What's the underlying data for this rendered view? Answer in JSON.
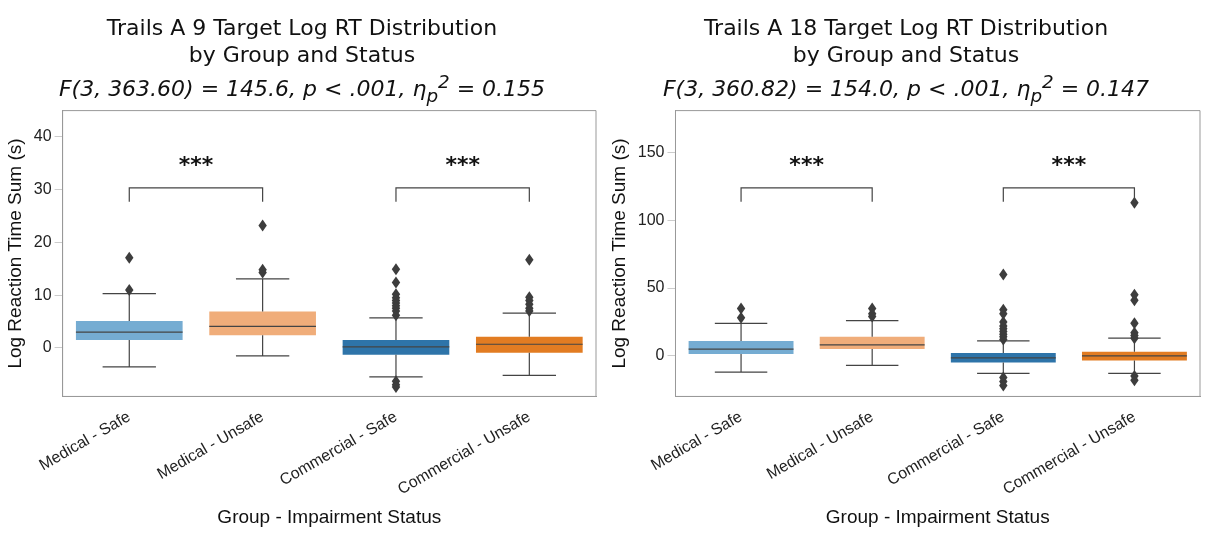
{
  "chart_data": [
    {
      "type": "box",
      "title": "Trails A 9 Target Log RT Distribution\nby Group and Status",
      "subtitle": "F(3, 363.60) = 145.6, p < .001, η$_{p}$$^{2}$ = 0.155",
      "xlabel": "Group - Impairment Status",
      "ylabel": "Log Reaction Time Sum (s)",
      "categories": [
        "Medical - Safe",
        "Medical - Unsafe",
        "Commercial - Safe",
        "Commercial - Unsafe"
      ],
      "colors": [
        "#75acd2",
        "#f0ad7a",
        "#2e74a9",
        "#e27c22"
      ],
      "boxes": [
        {
          "low": -3.6,
          "q1": 1.5,
          "median": 3.0,
          "q3": 5.1,
          "high": 10.3,
          "outliers": [
            11,
            17.1
          ]
        },
        {
          "low": -1.5,
          "q1": 2.4,
          "median": 4.1,
          "q3": 6.9,
          "high": 13.1,
          "outliers": [
            14.3,
            14.8,
            23.2
          ]
        },
        {
          "low": -5.5,
          "q1": -1.3,
          "median": 0.2,
          "q3": 1.5,
          "high": 5.7,
          "outliers": [
            6.2,
            7,
            7.5,
            8,
            8.5,
            9,
            9.5,
            10.2,
            12.4,
            14.9,
            -6.3,
            -7,
            -7.4
          ]
        },
        {
          "low": -5.2,
          "q1": -0.9,
          "median": 0.7,
          "q3": 2.1,
          "high": 6.6,
          "outliers": [
            7,
            7.5,
            8.3,
            9,
            9.6,
            16.7
          ]
        }
      ],
      "ylim": [
        -9.2,
        45
      ],
      "yticks": [
        0,
        10,
        20,
        30,
        40
      ],
      "grid": false,
      "legend": false,
      "marker": "diamond",
      "annotations": [
        "***",
        "***"
      ]
    },
    {
      "type": "box",
      "title": "Trails A 18 Target Log RT Distribution\nby Group and Status",
      "subtitle": "F(3, 360.82) = 154.0, p < .001, η$_{p}$$^{2}$ = 0.147",
      "xlabel": "Group - Impairment Status",
      "ylabel": "Log Reaction Time Sum (s)",
      "categories": [
        "Medical - Safe",
        "Medical - Unsafe",
        "Commercial - Safe",
        "Commercial - Unsafe"
      ],
      "colors": [
        "#75acd2",
        "#f0ad7a",
        "#2e74a9",
        "#e27c22"
      ],
      "boxes": [
        {
          "low": -12,
          "q1": 1.4,
          "median": 5,
          "q3": 11,
          "high": 24,
          "outliers": [
            28,
            35
          ]
        },
        {
          "low": -7,
          "q1": 5,
          "median": 8,
          "q3": 14,
          "high": 26,
          "outliers": [
            29,
            31,
            35
          ]
        },
        {
          "low": -13,
          "q1": -5,
          "median": -1.5,
          "q3": 2,
          "high": 11,
          "outliers": [
            12,
            14,
            16,
            18,
            20,
            22,
            25,
            31,
            34,
            60,
            -16,
            -19,
            -22
          ]
        },
        {
          "low": -13,
          "q1": -3.5,
          "median": 0,
          "q3": 3,
          "high": 13,
          "outliers": [
            13,
            15,
            17,
            24,
            41,
            45,
            113,
            -15,
            -18
          ]
        }
      ],
      "ylim": [
        -30,
        181
      ],
      "yticks": [
        0,
        50,
        100,
        150
      ],
      "grid": false,
      "legend": false,
      "marker": "diamond",
      "annotations": [
        "***",
        "***"
      ]
    }
  ]
}
